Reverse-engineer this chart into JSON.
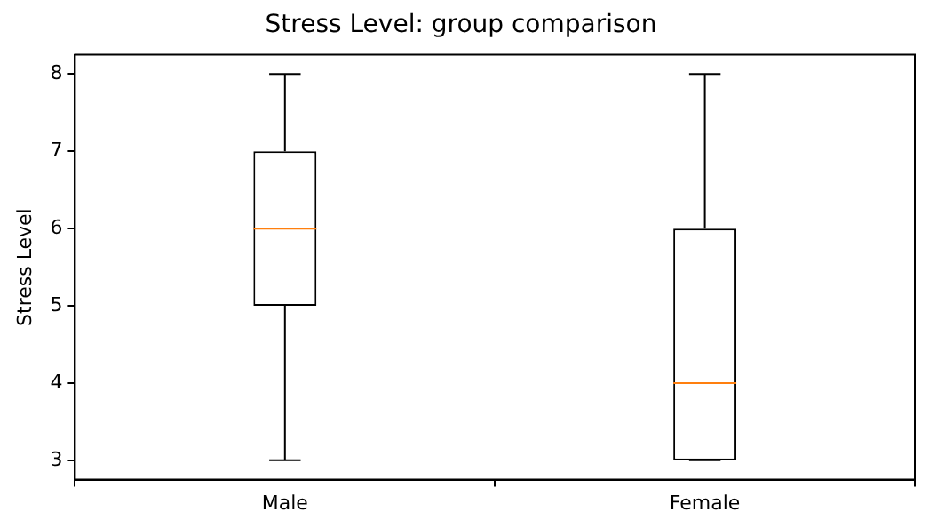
{
  "chart_data": {
    "type": "box",
    "title": "Stress Level: group comparison",
    "ylabel": "Stress Level",
    "categories": [
      "Male",
      "Female"
    ],
    "boxes": [
      {
        "low": 3,
        "q1": 5,
        "median": 6,
        "q3": 7,
        "high": 8
      },
      {
        "low": 3,
        "q1": 3,
        "median": 4,
        "q3": 6,
        "high": 8
      }
    ],
    "ylim": [
      2.75,
      8.25
    ],
    "yticks": [
      3,
      4,
      5,
      6,
      7,
      8
    ]
  }
}
